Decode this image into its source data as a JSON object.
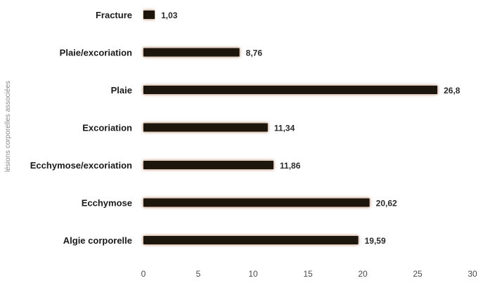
{
  "chart_data": {
    "type": "bar",
    "orientation": "horizontal",
    "categories": [
      "Fracture",
      "Plaie/excoriation",
      "Plaie",
      "Excoriation",
      "Ecchymose/excoriation",
      "Ecchymose",
      "Algie corporelle"
    ],
    "values": [
      1.03,
      8.76,
      26.8,
      11.34,
      11.86,
      20.62,
      19.59
    ],
    "value_labels": [
      "1,03",
      "8,76",
      "26,8",
      "11,34",
      "11,86",
      "20,62",
      "19,59"
    ],
    "title": "",
    "xlabel": "",
    "ylabel": "lésions corporelles associées",
    "xlim": [
      0,
      30
    ],
    "xticks": [
      0,
      5,
      10,
      15,
      20,
      25,
      30
    ],
    "grid": false,
    "legend": "none",
    "bar_color": "#1c1411",
    "bar_glow_color": "#c8a48e"
  }
}
